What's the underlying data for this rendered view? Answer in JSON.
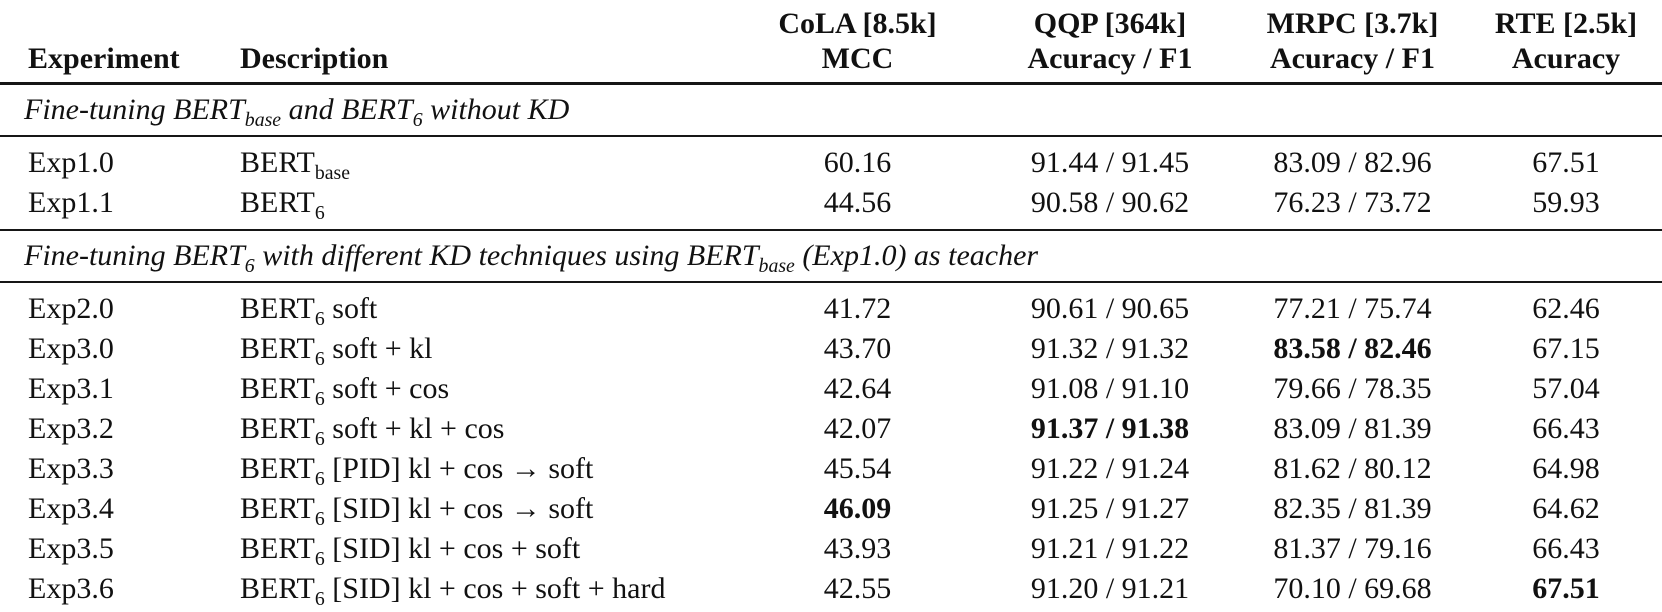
{
  "colors": {
    "text": "#111111",
    "rule": "#161616",
    "background": "#ffffff"
  },
  "table": {
    "headers": [
      {
        "label": "Experiment"
      },
      {
        "label": "Description"
      },
      {
        "line1": "CoLA [8.5k]",
        "line2": "MCC"
      },
      {
        "line1": "QQP [364k]",
        "line2": "Acuracy / F1"
      },
      {
        "line1": "MRPC [3.7k]",
        "line2": "Acuracy / F1"
      },
      {
        "line1": "RTE [2.5k]",
        "line2": "Acuracy"
      }
    ],
    "sections": [
      {
        "title": [
          {
            "t": "Fine-tuning BERT"
          },
          {
            "s": "base"
          },
          {
            "t": " and BERT"
          },
          {
            "s": "6"
          },
          {
            "t": " without KD"
          }
        ],
        "rows": [
          {
            "exp": "Exp1.0",
            "desc": [
              {
                "t": "BERT"
              },
              {
                "s": "base"
              }
            ],
            "cells": [
              {
                "v": "60.16"
              },
              {
                "v": "91.44 / 91.45"
              },
              {
                "v": "83.09 / 82.96"
              },
              {
                "v": "67.51"
              }
            ]
          },
          {
            "exp": "Exp1.1",
            "desc": [
              {
                "t": "BERT"
              },
              {
                "s": "6"
              }
            ],
            "cells": [
              {
                "v": "44.56"
              },
              {
                "v": "90.58 / 90.62"
              },
              {
                "v": "76.23 / 73.72"
              },
              {
                "v": "59.93"
              }
            ]
          }
        ]
      },
      {
        "title": [
          {
            "t": "Fine-tuning BERT"
          },
          {
            "s": "6"
          },
          {
            "t": " with different KD techniques using BERT"
          },
          {
            "s": "base"
          },
          {
            "t": " (Exp1.0) as teacher"
          }
        ],
        "rows": [
          {
            "exp": "Exp2.0",
            "desc": [
              {
                "t": "BERT"
              },
              {
                "s": "6"
              },
              {
                "t": " soft"
              }
            ],
            "cells": [
              {
                "v": "41.72"
              },
              {
                "v": "90.61 / 90.65"
              },
              {
                "v": "77.21 / 75.74"
              },
              {
                "v": "62.46"
              }
            ]
          },
          {
            "exp": "Exp3.0",
            "desc": [
              {
                "t": "BERT"
              },
              {
                "s": "6"
              },
              {
                "t": " soft + kl"
              }
            ],
            "cells": [
              {
                "v": "43.70"
              },
              {
                "v": "91.32 / 91.32"
              },
              {
                "v": "83.58 / 82.46",
                "b": true
              },
              {
                "v": "67.15"
              }
            ]
          },
          {
            "exp": "Exp3.1",
            "desc": [
              {
                "t": "BERT"
              },
              {
                "s": "6"
              },
              {
                "t": " soft + cos"
              }
            ],
            "cells": [
              {
                "v": "42.64"
              },
              {
                "v": "91.08 / 91.10"
              },
              {
                "v": "79.66 / 78.35"
              },
              {
                "v": "57.04"
              }
            ]
          },
          {
            "exp": "Exp3.2",
            "desc": [
              {
                "t": "BERT"
              },
              {
                "s": "6"
              },
              {
                "t": " soft + kl + cos"
              }
            ],
            "cells": [
              {
                "v": "42.07"
              },
              {
                "v": "91.37 / 91.38",
                "b": true
              },
              {
                "v": "83.09 / 81.39"
              },
              {
                "v": "66.43"
              }
            ]
          },
          {
            "exp": "Exp3.3",
            "desc": [
              {
                "t": "BERT"
              },
              {
                "s": "6"
              },
              {
                "t": " [PID] kl + cos → soft"
              }
            ],
            "cells": [
              {
                "v": "45.54"
              },
              {
                "v": "91.22 / 91.24"
              },
              {
                "v": "81.62 / 80.12"
              },
              {
                "v": "64.98"
              }
            ]
          },
          {
            "exp": "Exp3.4",
            "desc": [
              {
                "t": "BERT"
              },
              {
                "s": "6"
              },
              {
                "t": " [SID] kl + cos → soft"
              }
            ],
            "cells": [
              {
                "v": "46.09",
                "b": true
              },
              {
                "v": "91.25 / 91.27"
              },
              {
                "v": "82.35 / 81.39"
              },
              {
                "v": "64.62"
              }
            ]
          },
          {
            "exp": "Exp3.5",
            "desc": [
              {
                "t": "BERT"
              },
              {
                "s": "6"
              },
              {
                "t": " [SID] kl + cos + soft"
              }
            ],
            "cells": [
              {
                "v": "43.93"
              },
              {
                "v": "91.21 / 91.22"
              },
              {
                "v": "81.37 / 79.16"
              },
              {
                "v": "66.43"
              }
            ]
          },
          {
            "exp": "Exp3.6",
            "desc": [
              {
                "t": "BERT"
              },
              {
                "s": "6"
              },
              {
                "t": " [SID] kl + cos + soft + hard"
              }
            ],
            "cells": [
              {
                "v": "42.55"
              },
              {
                "v": "91.20 / 91.21"
              },
              {
                "v": "70.10 / 69.68"
              },
              {
                "v": "67.51",
                "b": true
              }
            ]
          }
        ]
      }
    ]
  }
}
